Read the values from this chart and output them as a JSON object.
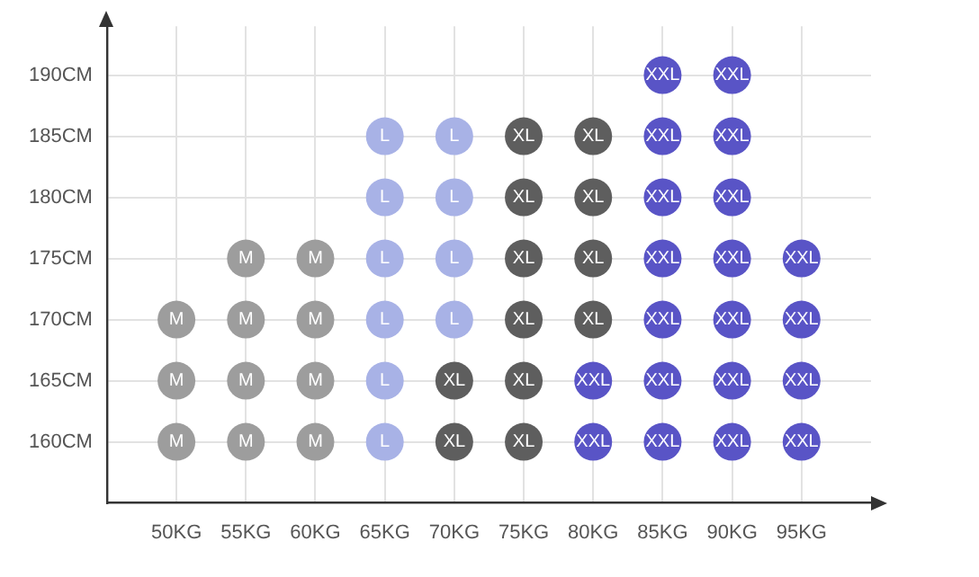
{
  "chart_data": {
    "type": "scatter",
    "marker": "circle",
    "grid": true,
    "legend": false,
    "xlim": [
      45,
      100
    ],
    "ylim": [
      155,
      194
    ],
    "xticks": [
      {
        "value": 50,
        "label": "50KG"
      },
      {
        "value": 55,
        "label": "55KG"
      },
      {
        "value": 60,
        "label": "60KG"
      },
      {
        "value": 65,
        "label": "65KG"
      },
      {
        "value": 70,
        "label": "70KG"
      },
      {
        "value": 75,
        "label": "75KG"
      },
      {
        "value": 80,
        "label": "80KG"
      },
      {
        "value": 85,
        "label": "85KG"
      },
      {
        "value": 90,
        "label": "90KG"
      },
      {
        "value": 95,
        "label": "95KG"
      }
    ],
    "yticks": [
      {
        "value": 160,
        "label": "160CM"
      },
      {
        "value": 165,
        "label": "165CM"
      },
      {
        "value": 170,
        "label": "170CM"
      },
      {
        "value": 175,
        "label": "175CM"
      },
      {
        "value": 180,
        "label": "180CM"
      },
      {
        "value": 185,
        "label": "185CM"
      },
      {
        "value": 190,
        "label": "190CM"
      }
    ],
    "series": [
      {
        "name": "M",
        "color": "#9d9d9d",
        "x": [
          50,
          55,
          60,
          50,
          55,
          60,
          50,
          55,
          60,
          55,
          60
        ],
        "values": [
          160,
          160,
          160,
          165,
          165,
          165,
          170,
          170,
          170,
          175,
          175
        ]
      },
      {
        "name": "L",
        "color": "#a8b2e6",
        "x": [
          65,
          65,
          65,
          70,
          65,
          70,
          65,
          70,
          65,
          70
        ],
        "values": [
          160,
          165,
          170,
          170,
          175,
          175,
          180,
          180,
          185,
          185
        ]
      },
      {
        "name": "XL",
        "color": "#5e5e5e",
        "x": [
          70,
          75,
          70,
          75,
          75,
          80,
          75,
          80,
          75,
          80,
          75,
          80
        ],
        "values": [
          160,
          160,
          165,
          165,
          170,
          170,
          175,
          175,
          180,
          180,
          185,
          185
        ]
      },
      {
        "name": "XXL",
        "color": "#5954c6",
        "x": [
          80,
          85,
          90,
          95,
          80,
          85,
          90,
          95,
          85,
          90,
          95,
          85,
          90,
          95,
          85,
          90,
          85,
          90,
          85,
          90
        ],
        "values": [
          160,
          160,
          160,
          160,
          165,
          165,
          165,
          165,
          170,
          170,
          170,
          175,
          175,
          175,
          180,
          180,
          185,
          185,
          190,
          190
        ]
      }
    ]
  }
}
